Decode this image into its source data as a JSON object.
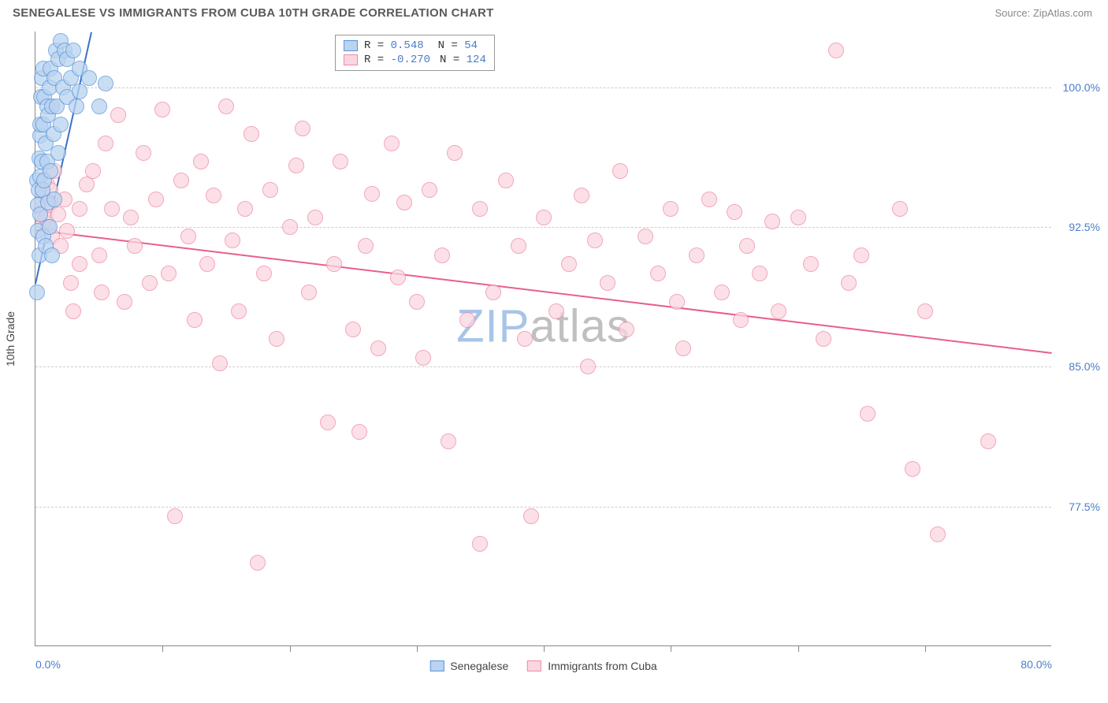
{
  "header": {
    "title": "SENEGALESE VS IMMIGRANTS FROM CUBA 10TH GRADE CORRELATION CHART",
    "source_label": "Source: ",
    "source_name": "ZipAtlas.com"
  },
  "chart": {
    "type": "scatter",
    "y_axis_label": "10th Grade",
    "background_color": "#ffffff",
    "grid_color": "#cccccc",
    "axis_color": "#888888",
    "tick_label_color": "#4a7ec9",
    "xlim": [
      0,
      80
    ],
    "ylim": [
      70,
      103
    ],
    "y_ticks": [
      {
        "value": 77.5,
        "label": "77.5%"
      },
      {
        "value": 85.0,
        "label": "85.0%"
      },
      {
        "value": 92.5,
        "label": "92.5%"
      },
      {
        "value": 100.0,
        "label": "100.0%"
      }
    ],
    "x_ticks_minor": [
      10,
      20,
      30,
      40,
      50,
      60,
      70
    ],
    "x_tick_labels": [
      {
        "value": 0,
        "label": "0.0%"
      },
      {
        "value": 80,
        "label": "80.0%"
      }
    ],
    "marker_radius": 10,
    "marker_stroke_width": 1.2,
    "line_width": 2,
    "series": {
      "senegalese": {
        "label": "Senegalese",
        "fill": "#b9d3f0",
        "stroke": "#5a95da",
        "line_color": "#3a72c4",
        "R": "0.548",
        "N": "54",
        "trend": {
          "x1": 0,
          "y1": 89.5,
          "x2": 4.4,
          "y2": 103
        },
        "points": [
          [
            0.1,
            89.0
          ],
          [
            0.15,
            95.0
          ],
          [
            0.2,
            92.3
          ],
          [
            0.2,
            93.7
          ],
          [
            0.25,
            94.5
          ],
          [
            0.3,
            91.0
          ],
          [
            0.3,
            96.2
          ],
          [
            0.35,
            97.4
          ],
          [
            0.35,
            93.2
          ],
          [
            0.4,
            98.0
          ],
          [
            0.4,
            95.2
          ],
          [
            0.45,
            99.5
          ],
          [
            0.5,
            96.0
          ],
          [
            0.5,
            100.5
          ],
          [
            0.55,
            94.5
          ],
          [
            0.6,
            98.0
          ],
          [
            0.6,
            92.0
          ],
          [
            0.65,
            101.0
          ],
          [
            0.7,
            99.5
          ],
          [
            0.7,
            95.0
          ],
          [
            0.8,
            97.0
          ],
          [
            0.8,
            91.5
          ],
          [
            0.9,
            99.0
          ],
          [
            0.9,
            96.0
          ],
          [
            1.0,
            98.5
          ],
          [
            1.0,
            93.8
          ],
          [
            1.1,
            100.0
          ],
          [
            1.1,
            92.5
          ],
          [
            1.2,
            101.0
          ],
          [
            1.2,
            95.5
          ],
          [
            1.3,
            99.0
          ],
          [
            1.3,
            91.0
          ],
          [
            1.4,
            97.5
          ],
          [
            1.5,
            100.5
          ],
          [
            1.5,
            94.0
          ],
          [
            1.6,
            102.0
          ],
          [
            1.7,
            99.0
          ],
          [
            1.8,
            101.5
          ],
          [
            1.8,
            96.5
          ],
          [
            2.0,
            102.5
          ],
          [
            2.0,
            98.0
          ],
          [
            2.2,
            100.0
          ],
          [
            2.3,
            102.0
          ],
          [
            2.5,
            99.5
          ],
          [
            2.5,
            101.5
          ],
          [
            2.8,
            100.5
          ],
          [
            3.0,
            102.0
          ],
          [
            3.2,
            99.0
          ],
          [
            3.5,
            101.0
          ],
          [
            3.5,
            99.8
          ],
          [
            4.2,
            100.5
          ],
          [
            5.0,
            99.0
          ],
          [
            5.5,
            100.2
          ]
        ]
      },
      "cuba": {
        "label": "Immigrants from Cuba",
        "fill": "#fbd6e0",
        "stroke": "#ed8aa8",
        "line_color": "#e85f8b",
        "R": "-0.270",
        "N": "124",
        "trend": {
          "x1": 0,
          "y1": 92.4,
          "x2": 80,
          "y2": 85.8
        },
        "points": [
          [
            0.5,
            93.5
          ],
          [
            0.6,
            92.8
          ],
          [
            0.7,
            94.2
          ],
          [
            0.8,
            93.0
          ],
          [
            0.9,
            94.8
          ],
          [
            1.0,
            92.5
          ],
          [
            1.1,
            93.7
          ],
          [
            1.2,
            94.5
          ],
          [
            1.3,
            92.0
          ],
          [
            1.5,
            95.5
          ],
          [
            1.8,
            93.2
          ],
          [
            2.0,
            91.5
          ],
          [
            2.3,
            94.0
          ],
          [
            2.5,
            92.3
          ],
          [
            2.8,
            89.5
          ],
          [
            3.0,
            88.0
          ],
          [
            3.5,
            93.5
          ],
          [
            3.5,
            90.5
          ],
          [
            4.0,
            94.8
          ],
          [
            4.5,
            95.5
          ],
          [
            5.0,
            91.0
          ],
          [
            5.2,
            89.0
          ],
          [
            5.5,
            97.0
          ],
          [
            6.0,
            93.5
          ],
          [
            6.5,
            98.5
          ],
          [
            7.0,
            88.5
          ],
          [
            7.5,
            93.0
          ],
          [
            7.8,
            91.5
          ],
          [
            8.5,
            96.5
          ],
          [
            9.0,
            89.5
          ],
          [
            9.5,
            94.0
          ],
          [
            10.0,
            98.8
          ],
          [
            10.5,
            90.0
          ],
          [
            11.0,
            77.0
          ],
          [
            11.5,
            95.0
          ],
          [
            12.0,
            92.0
          ],
          [
            12.5,
            87.5
          ],
          [
            13.0,
            96.0
          ],
          [
            13.5,
            90.5
          ],
          [
            14.0,
            94.2
          ],
          [
            14.5,
            85.2
          ],
          [
            15.0,
            99.0
          ],
          [
            15.5,
            91.8
          ],
          [
            16.0,
            88.0
          ],
          [
            16.5,
            93.5
          ],
          [
            17.0,
            97.5
          ],
          [
            17.5,
            74.5
          ],
          [
            18.0,
            90.0
          ],
          [
            18.5,
            94.5
          ],
          [
            19.0,
            86.5
          ],
          [
            20.0,
            92.5
          ],
          [
            20.5,
            95.8
          ],
          [
            21.0,
            97.8
          ],
          [
            21.5,
            89.0
          ],
          [
            22.0,
            93.0
          ],
          [
            23.0,
            82.0
          ],
          [
            23.5,
            90.5
          ],
          [
            24.0,
            96.0
          ],
          [
            25.0,
            87.0
          ],
          [
            25.5,
            81.5
          ],
          [
            26.0,
            91.5
          ],
          [
            26.5,
            94.3
          ],
          [
            27.0,
            86.0
          ],
          [
            28.0,
            97.0
          ],
          [
            28.5,
            89.8
          ],
          [
            29.0,
            93.8
          ],
          [
            30.0,
            88.5
          ],
          [
            30.5,
            85.5
          ],
          [
            31.0,
            94.5
          ],
          [
            32.0,
            91.0
          ],
          [
            32.5,
            81.0
          ],
          [
            33.0,
            96.5
          ],
          [
            34.0,
            87.5
          ],
          [
            35.0,
            93.5
          ],
          [
            35.0,
            75.5
          ],
          [
            36.0,
            89.0
          ],
          [
            37.0,
            95.0
          ],
          [
            38.0,
            91.5
          ],
          [
            38.5,
            86.5
          ],
          [
            39.0,
            77.0
          ],
          [
            40.0,
            93.0
          ],
          [
            41.0,
            88.0
          ],
          [
            42.0,
            90.5
          ],
          [
            43.0,
            94.2
          ],
          [
            43.5,
            85.0
          ],
          [
            44.0,
            91.8
          ],
          [
            45.0,
            89.5
          ],
          [
            46.0,
            95.5
          ],
          [
            46.5,
            87.0
          ],
          [
            48.0,
            92.0
          ],
          [
            49.0,
            90.0
          ],
          [
            50.0,
            93.5
          ],
          [
            50.5,
            88.5
          ],
          [
            51.0,
            86.0
          ],
          [
            52.0,
            91.0
          ],
          [
            53.0,
            94.0
          ],
          [
            54.0,
            89.0
          ],
          [
            55.0,
            93.3
          ],
          [
            55.5,
            87.5
          ],
          [
            56.0,
            91.5
          ],
          [
            57.0,
            90.0
          ],
          [
            58.0,
            92.8
          ],
          [
            58.5,
            88.0
          ],
          [
            60.0,
            93.0
          ],
          [
            61.0,
            90.5
          ],
          [
            62.0,
            86.5
          ],
          [
            63.0,
            102.0
          ],
          [
            64.0,
            89.5
          ],
          [
            65.0,
            91.0
          ],
          [
            65.5,
            82.5
          ],
          [
            68.0,
            93.5
          ],
          [
            69.0,
            79.5
          ],
          [
            70.0,
            88.0
          ],
          [
            71.0,
            76.0
          ],
          [
            75.0,
            81.0
          ]
        ]
      }
    }
  },
  "watermark": {
    "text1": "ZIP",
    "text2": "atlas",
    "color1": "#a8c5e8",
    "color2": "#c0c0c0"
  }
}
